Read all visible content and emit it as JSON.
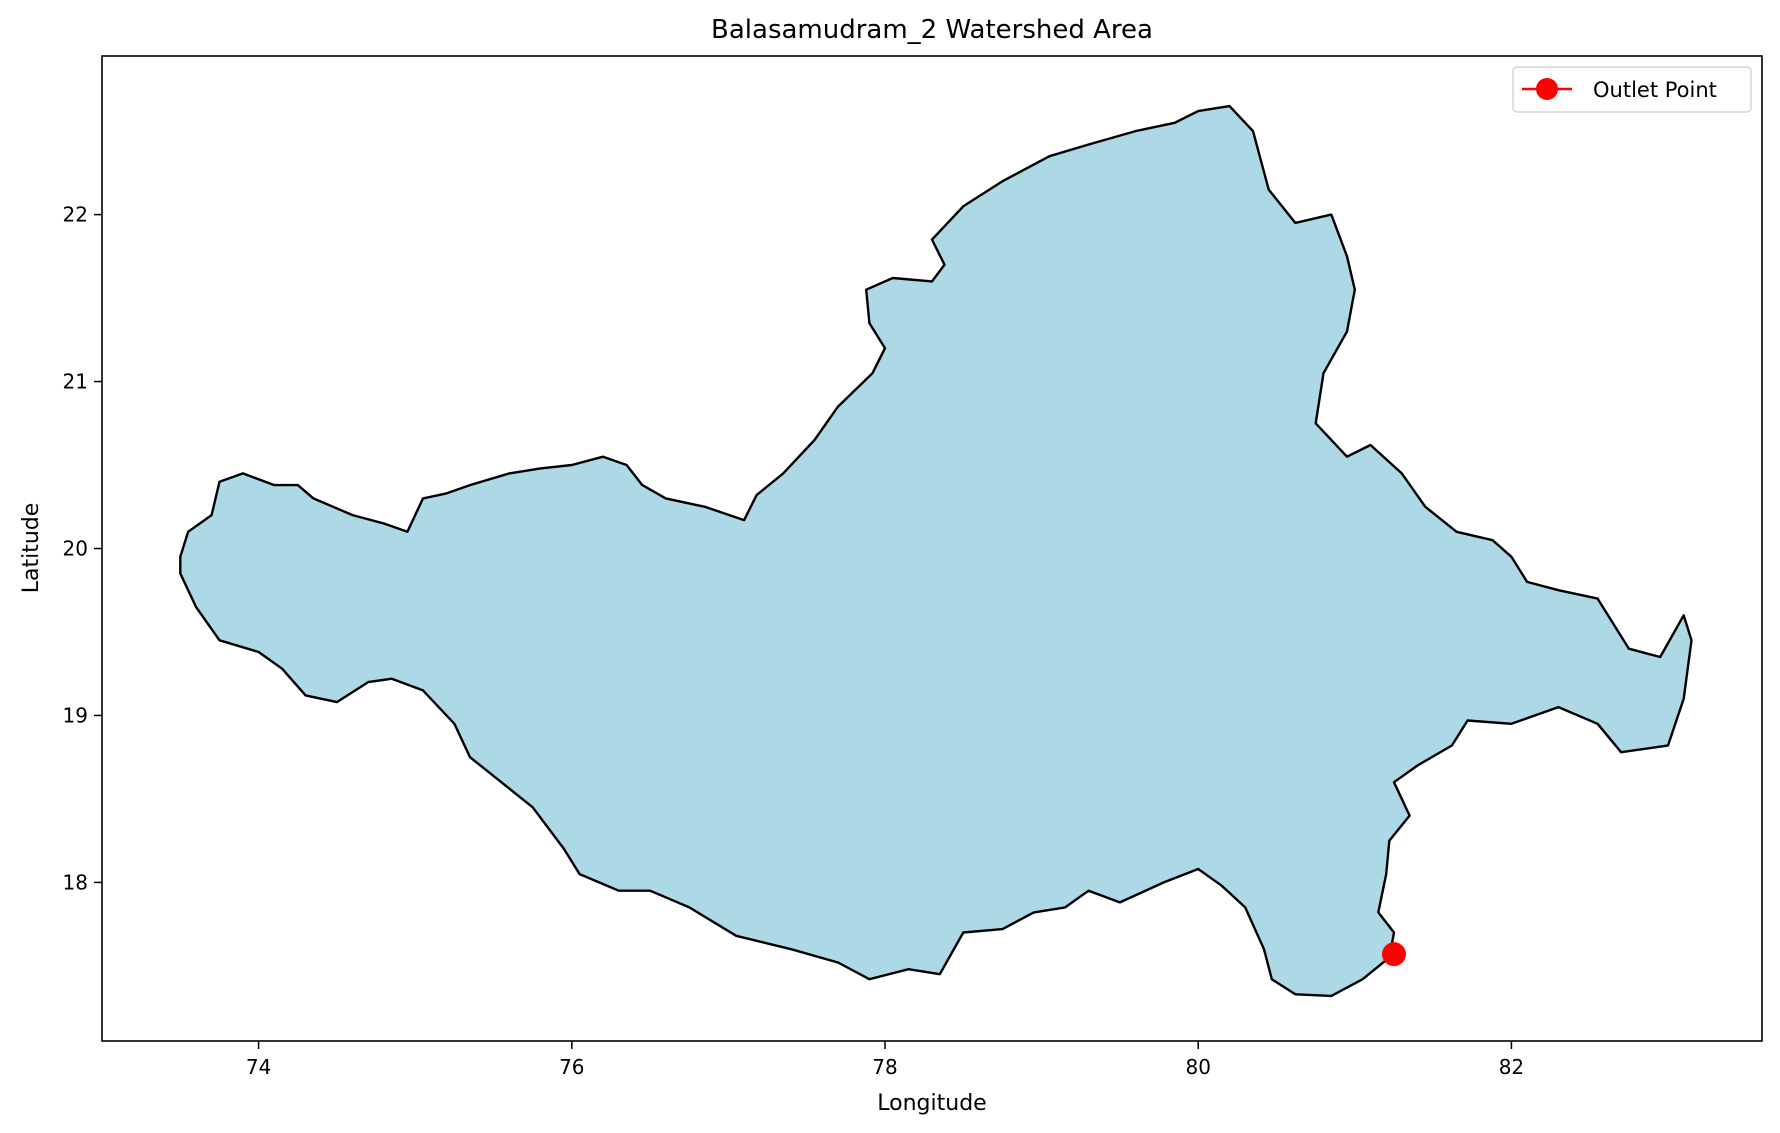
{
  "title": "Balasamudram_2 Watershed Area",
  "xlabel": "Longitude",
  "ylabel": "Latitude",
  "colors": {
    "watershed_fill": "#add8e6",
    "watershed_edge": "#000000",
    "outlet": "#ff0000"
  },
  "chart_data": {
    "type": "map",
    "title": "Balasamudram_2 Watershed Area",
    "xlabel": "Longitude",
    "ylabel": "Latitude",
    "xlim": [
      73.0,
      83.6
    ],
    "ylim": [
      17.05,
      22.95
    ],
    "xticks": [
      74,
      76,
      78,
      80,
      82
    ],
    "yticks": [
      18,
      19,
      20,
      21,
      22
    ],
    "grid": false,
    "legend_position": "top-right",
    "legend": [
      {
        "label": "Outlet Point",
        "marker": "circle",
        "color": "#ff0000"
      }
    ],
    "outlet_point": {
      "lon": 81.25,
      "lat": 17.57
    },
    "watershed_boundary": [
      [
        73.5,
        19.95
      ],
      [
        73.55,
        20.1
      ],
      [
        73.7,
        20.2
      ],
      [
        73.75,
        20.4
      ],
      [
        73.9,
        20.45
      ],
      [
        74.1,
        20.38
      ],
      [
        74.25,
        20.38
      ],
      [
        74.35,
        20.3
      ],
      [
        74.6,
        20.2
      ],
      [
        74.8,
        20.15
      ],
      [
        74.95,
        20.1
      ],
      [
        75.05,
        20.3
      ],
      [
        75.2,
        20.33
      ],
      [
        75.35,
        20.38
      ],
      [
        75.6,
        20.45
      ],
      [
        75.8,
        20.48
      ],
      [
        76.0,
        20.5
      ],
      [
        76.2,
        20.55
      ],
      [
        76.35,
        20.5
      ],
      [
        76.45,
        20.38
      ],
      [
        76.6,
        20.3
      ],
      [
        76.85,
        20.25
      ],
      [
        77.1,
        20.17
      ],
      [
        77.18,
        20.32
      ],
      [
        77.35,
        20.45
      ],
      [
        77.55,
        20.65
      ],
      [
        77.7,
        20.85
      ],
      [
        77.92,
        21.05
      ],
      [
        78.0,
        21.2
      ],
      [
        77.9,
        21.35
      ],
      [
        77.88,
        21.55
      ],
      [
        78.05,
        21.62
      ],
      [
        78.3,
        21.6
      ],
      [
        78.38,
        21.7
      ],
      [
        78.3,
        21.85
      ],
      [
        78.5,
        22.05
      ],
      [
        78.75,
        22.2
      ],
      [
        79.05,
        22.35
      ],
      [
        79.3,
        22.42
      ],
      [
        79.6,
        22.5
      ],
      [
        79.85,
        22.55
      ],
      [
        80.0,
        22.62
      ],
      [
        80.2,
        22.65
      ],
      [
        80.35,
        22.5
      ],
      [
        80.45,
        22.15
      ],
      [
        80.62,
        21.95
      ],
      [
        80.85,
        22.0
      ],
      [
        80.95,
        21.75
      ],
      [
        81.0,
        21.55
      ],
      [
        80.95,
        21.3
      ],
      [
        80.8,
        21.05
      ],
      [
        80.75,
        20.75
      ],
      [
        80.95,
        20.55
      ],
      [
        81.1,
        20.62
      ],
      [
        81.3,
        20.45
      ],
      [
        81.45,
        20.25
      ],
      [
        81.65,
        20.1
      ],
      [
        81.88,
        20.05
      ],
      [
        82.0,
        19.95
      ],
      [
        82.1,
        19.8
      ],
      [
        82.3,
        19.75
      ],
      [
        82.55,
        19.7
      ],
      [
        82.75,
        19.4
      ],
      [
        82.95,
        19.35
      ],
      [
        83.1,
        19.6
      ],
      [
        83.15,
        19.45
      ],
      [
        83.1,
        19.1
      ],
      [
        83.0,
        18.82
      ],
      [
        82.7,
        18.78
      ],
      [
        82.55,
        18.95
      ],
      [
        82.3,
        19.05
      ],
      [
        82.0,
        18.95
      ],
      [
        81.72,
        18.97
      ],
      [
        81.62,
        18.82
      ],
      [
        81.4,
        18.7
      ],
      [
        81.25,
        18.6
      ],
      [
        81.35,
        18.4
      ],
      [
        81.22,
        18.25
      ],
      [
        81.2,
        18.05
      ],
      [
        81.15,
        17.82
      ],
      [
        81.25,
        17.7
      ],
      [
        81.22,
        17.55
      ],
      [
        81.05,
        17.42
      ],
      [
        80.85,
        17.32
      ],
      [
        80.62,
        17.33
      ],
      [
        80.47,
        17.42
      ],
      [
        80.42,
        17.6
      ],
      [
        80.3,
        17.85
      ],
      [
        80.15,
        17.98
      ],
      [
        80.0,
        18.08
      ],
      [
        79.78,
        18.0
      ],
      [
        79.5,
        17.88
      ],
      [
        79.3,
        17.95
      ],
      [
        79.15,
        17.85
      ],
      [
        78.95,
        17.82
      ],
      [
        78.75,
        17.72
      ],
      [
        78.5,
        17.7
      ],
      [
        78.35,
        17.45
      ],
      [
        78.15,
        17.48
      ],
      [
        77.9,
        17.42
      ],
      [
        77.7,
        17.52
      ],
      [
        77.4,
        17.6
      ],
      [
        77.05,
        17.68
      ],
      [
        76.75,
        17.85
      ],
      [
        76.5,
        17.95
      ],
      [
        76.3,
        17.95
      ],
      [
        76.05,
        18.05
      ],
      [
        75.95,
        18.2
      ],
      [
        75.75,
        18.45
      ],
      [
        75.55,
        18.6
      ],
      [
        75.35,
        18.75
      ],
      [
        75.25,
        18.95
      ],
      [
        75.05,
        19.15
      ],
      [
        74.85,
        19.22
      ],
      [
        74.7,
        19.2
      ],
      [
        74.5,
        19.08
      ],
      [
        74.3,
        19.12
      ],
      [
        74.15,
        19.28
      ],
      [
        74.0,
        19.38
      ],
      [
        73.75,
        19.45
      ],
      [
        73.6,
        19.65
      ],
      [
        73.5,
        19.85
      ]
    ]
  }
}
